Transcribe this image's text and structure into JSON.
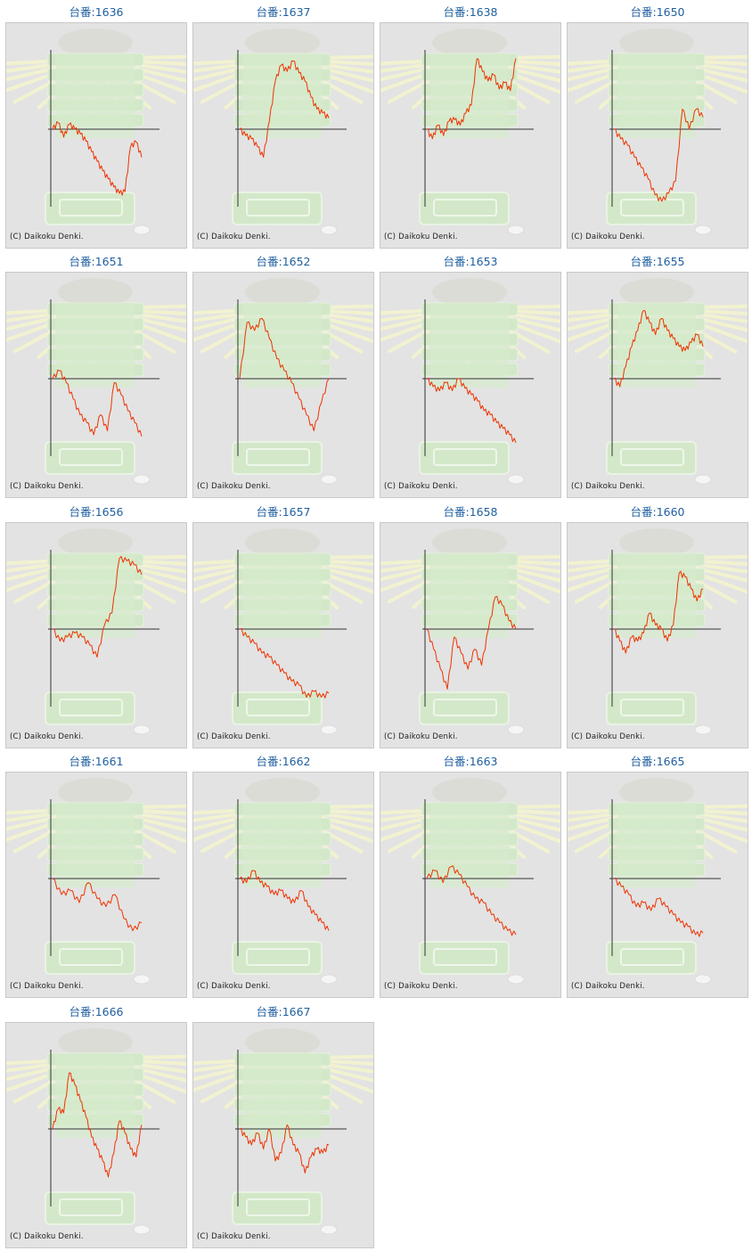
{
  "copyright": "(C) Daikoku Denki.",
  "line_color": "#ee3300",
  "chart_data": [
    {
      "type": "line",
      "title": "台番:1636",
      "values": [
        0,
        8,
        -10,
        6,
        0,
        -6,
        -15,
        -28,
        -40,
        -52,
        -62,
        -72,
        -80,
        -78,
        -22,
        -16,
        -35
      ]
    },
    {
      "type": "line",
      "title": "台番:1637",
      "values": [
        0,
        -8,
        -12,
        -22,
        -35,
        10,
        60,
        80,
        72,
        85,
        70,
        60,
        40,
        25,
        20,
        14
      ]
    },
    {
      "type": "line",
      "title": "台番:1638",
      "values": [
        0,
        -12,
        5,
        -8,
        10,
        12,
        5,
        20,
        30,
        88,
        72,
        60,
        68,
        50,
        58,
        48,
        88
      ]
    },
    {
      "type": "line",
      "title": "台番:1650",
      "values": [
        0,
        -12,
        -20,
        -35,
        -48,
        -62,
        -82,
        -90,
        -80,
        -65,
        25,
        0,
        25,
        15
      ]
    },
    {
      "type": "line",
      "title": "台番:1651",
      "values": [
        0,
        10,
        -5,
        -25,
        -45,
        -55,
        -70,
        -45,
        -65,
        -5,
        -20,
        -40,
        -55,
        -72
      ]
    },
    {
      "type": "line",
      "title": "台番:1652",
      "values": [
        0,
        70,
        60,
        75,
        50,
        25,
        10,
        -5,
        -25,
        -45,
        -65,
        -30,
        0
      ]
    },
    {
      "type": "line",
      "title": "台番:1653",
      "values": [
        0,
        -10,
        -15,
        -5,
        -15,
        0,
        -12,
        -20,
        -28,
        -40,
        -45,
        -55,
        -62,
        -70,
        -80
      ]
    },
    {
      "type": "line",
      "title": "台番:1655",
      "values": [
        0,
        -10,
        15,
        40,
        60,
        85,
        70,
        55,
        75,
        60,
        50,
        40,
        35,
        45,
        55,
        40
      ]
    },
    {
      "type": "line",
      "title": "台番:1656",
      "values": [
        0,
        -15,
        -10,
        -5,
        -10,
        -20,
        -35,
        5,
        20,
        88,
        85,
        80,
        68
      ]
    },
    {
      "type": "line",
      "title": "台番:1657",
      "values": [
        0,
        -10,
        -18,
        -30,
        -35,
        -45,
        -55,
        -65,
        -70,
        -85,
        -78,
        -85,
        -80
      ]
    },
    {
      "type": "line",
      "title": "台番:1658",
      "values": [
        0,
        -25,
        -50,
        -75,
        -10,
        -30,
        -50,
        -25,
        -45,
        0,
        40,
        30,
        10,
        0
      ]
    },
    {
      "type": "line",
      "title": "台番:1660",
      "values": [
        0,
        -15,
        -30,
        -10,
        -15,
        -5,
        20,
        5,
        0,
        -15,
        5,
        70,
        65,
        50,
        35,
        50
      ]
    },
    {
      "type": "line",
      "title": "台番:1661",
      "values": [
        0,
        -20,
        -15,
        -30,
        -5,
        -25,
        -35,
        -20,
        -50,
        -65,
        -55
      ]
    },
    {
      "type": "line",
      "title": "台番:1662",
      "values": [
        0,
        -5,
        10,
        -5,
        -10,
        -20,
        -15,
        -25,
        -30,
        -15,
        -35,
        -45,
        -55,
        -65
      ]
    },
    {
      "type": "line",
      "title": "台番:1663",
      "values": [
        0,
        10,
        -5,
        15,
        5,
        -10,
        -25,
        -30,
        -45,
        -55,
        -65,
        -70
      ]
    },
    {
      "type": "line",
      "title": "台番:1665",
      "values": [
        0,
        -10,
        -20,
        -35,
        -30,
        -40,
        -25,
        -35,
        -45,
        -55,
        -60,
        -70,
        -68
      ]
    },
    {
      "type": "line",
      "title": "台番:1666",
      "values": [
        0,
        25,
        20,
        70,
        55,
        35,
        15,
        -10,
        -25,
        -40,
        -60,
        -30,
        10,
        -5,
        -25,
        -35,
        5
      ]
    },
    {
      "type": "line",
      "title": "台番:1667",
      "values": [
        0,
        -10,
        -20,
        -5,
        -25,
        0,
        -40,
        -30,
        5,
        -20,
        -30,
        -55,
        -35,
        -25,
        -30,
        -20
      ]
    }
  ]
}
